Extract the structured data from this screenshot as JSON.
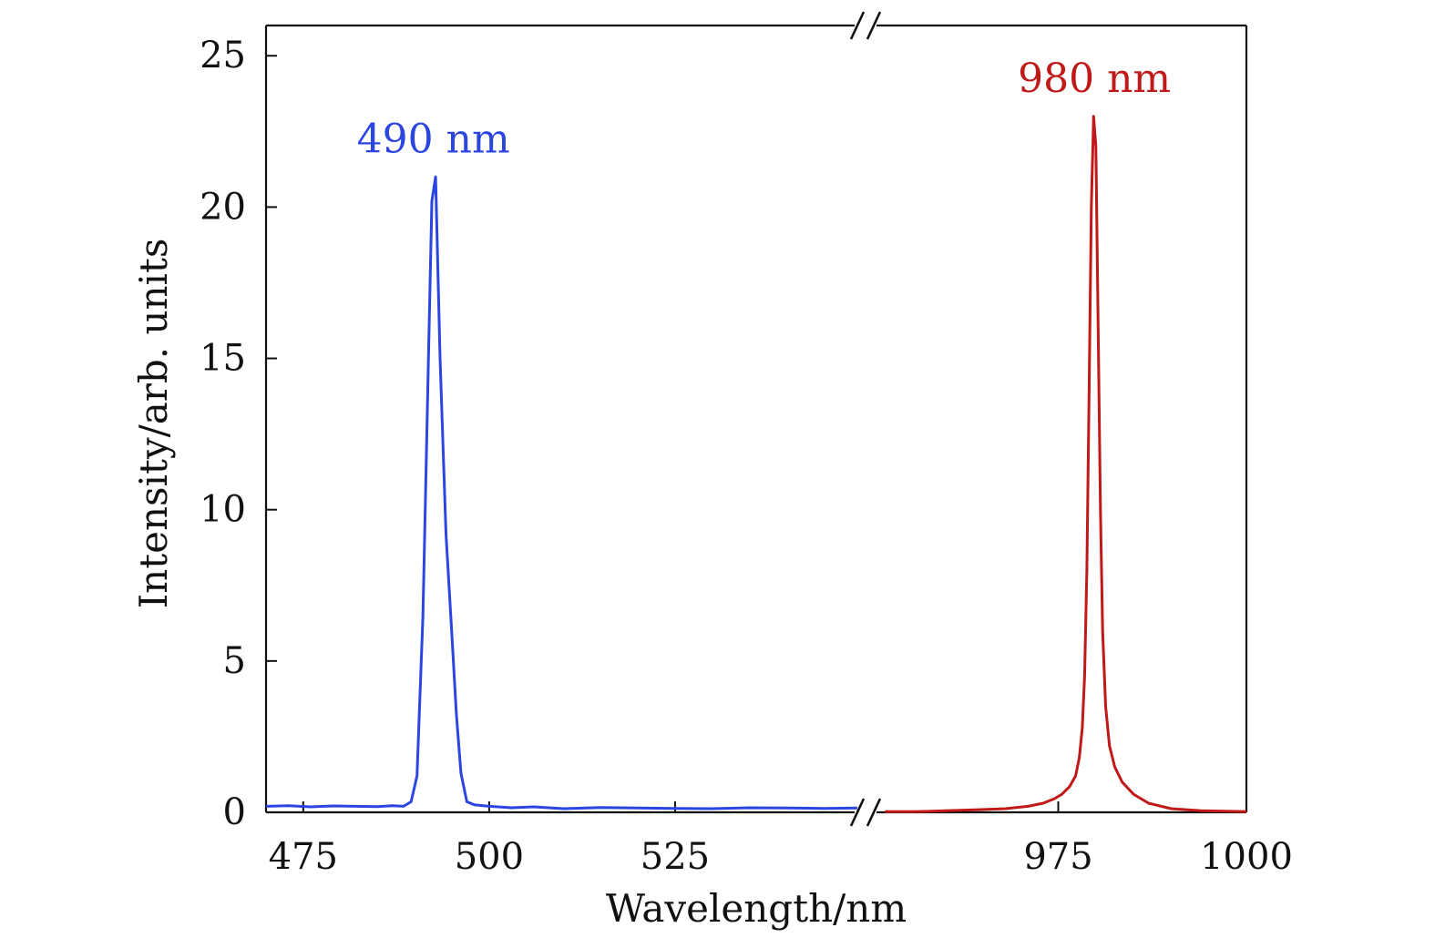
{
  "chart_data": {
    "type": "line",
    "xlabel": "Wavelength/nm",
    "ylabel": "Intensity/arb. units",
    "axis_break": true,
    "x_segments": [
      {
        "xlim": [
          470,
          550
        ],
        "ticks": [
          475,
          500,
          525
        ]
      },
      {
        "xlim": [
          950,
          1000
        ],
        "ticks": [
          975,
          1000
        ]
      }
    ],
    "ylim": [
      0,
      26
    ],
    "yticks": [
      0,
      5,
      10,
      15,
      20,
      25
    ],
    "grid": false,
    "series": [
      {
        "segment": 0,
        "color": "#2b46e0",
        "x": [
          470,
          473,
          476,
          479,
          482,
          485,
          487,
          488.5,
          489.5,
          490.3,
          491.1,
          491.8,
          492.3,
          492.8,
          493.4,
          494.2,
          495,
          495.6,
          496.2,
          497,
          498,
          500,
          503,
          506,
          510,
          515,
          520,
          525,
          530,
          535,
          540,
          545,
          549.5
        ],
        "y": [
          0.2,
          0.22,
          0.18,
          0.21,
          0.2,
          0.19,
          0.22,
          0.2,
          0.35,
          1.2,
          6.5,
          14.5,
          20.2,
          21.0,
          15.0,
          9.2,
          5.8,
          3.2,
          1.3,
          0.35,
          0.25,
          0.2,
          0.15,
          0.18,
          0.12,
          0.16,
          0.14,
          0.13,
          0.12,
          0.15,
          0.14,
          0.13,
          0.14
        ]
      },
      {
        "segment": 1,
        "color": "#c01919",
        "x": [
          952,
          956,
          960,
          964,
          968,
          971,
          973,
          974.5,
          975.5,
          976.5,
          977.3,
          977.8,
          978.2,
          978.5,
          978.8,
          979.1,
          979.4,
          979.7,
          980.0,
          980.3,
          980.6,
          980.9,
          981.3,
          981.8,
          982.5,
          983.5,
          985,
          987,
          990,
          994,
          1000
        ],
        "y": [
          0.02,
          0.02,
          0.05,
          0.08,
          0.12,
          0.2,
          0.3,
          0.45,
          0.6,
          0.85,
          1.2,
          1.8,
          2.8,
          4.5,
          8.0,
          14.0,
          20.0,
          23.0,
          22.0,
          16.0,
          10.0,
          6.0,
          3.5,
          2.2,
          1.5,
          1.0,
          0.6,
          0.3,
          0.12,
          0.05,
          0.02
        ]
      }
    ],
    "annotations": [
      {
        "text": "490 nm",
        "segment": 0,
        "x": 492.5,
        "y": 21.8,
        "color": "#2b46e0"
      },
      {
        "text": "980 nm",
        "segment": 1,
        "x": 979.8,
        "y": 23.8,
        "color": "#c01919"
      }
    ]
  }
}
